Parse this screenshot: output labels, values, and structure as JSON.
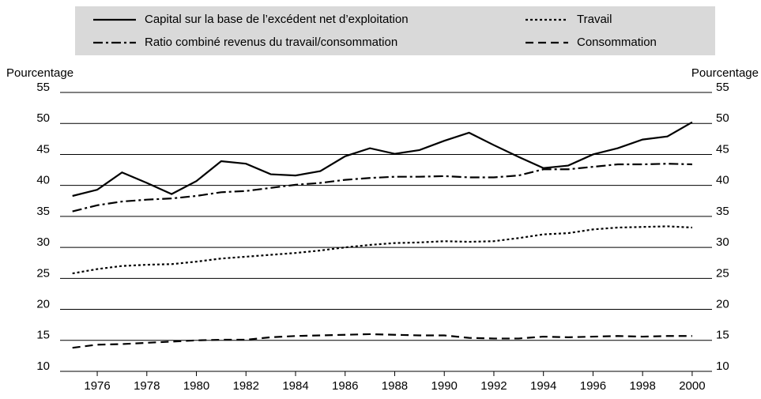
{
  "chart_data": {
    "type": "line",
    "ylabel": "Pourcentage",
    "x": [
      1975,
      1976,
      1977,
      1978,
      1979,
      1980,
      1981,
      1982,
      1983,
      1984,
      1985,
      1986,
      1987,
      1988,
      1989,
      1990,
      1991,
      1992,
      1993,
      1994,
      1995,
      1996,
      1997,
      1998,
      1999,
      2000
    ],
    "series": [
      {
        "name": "Capital sur la base de l’excédent net d’exploitation",
        "color": "#000000",
        "style": "solid",
        "values": [
          38.3,
          39.3,
          42.1,
          40.4,
          38.6,
          40.7,
          43.9,
          43.5,
          41.8,
          41.6,
          42.3,
          44.7,
          46.0,
          45.1,
          45.7,
          47.2,
          48.5,
          46.5,
          44.6,
          42.8,
          43.2,
          45.0,
          46.0,
          47.4,
          47.9,
          50.2
        ]
      },
      {
        "name": "Travail",
        "color": "#000000",
        "style": "dotted",
        "values": [
          25.8,
          26.5,
          27.0,
          27.2,
          27.3,
          27.7,
          28.2,
          28.5,
          28.8,
          29.1,
          29.5,
          30.0,
          30.4,
          30.7,
          30.8,
          31.0,
          30.9,
          31.0,
          31.5,
          32.1,
          32.3,
          32.9,
          33.2,
          33.3,
          33.4,
          33.2
        ]
      },
      {
        "name": "Ratio combiné revenus du travail/consommation",
        "color": "#000000",
        "style": "dashdot",
        "values": [
          35.8,
          36.8,
          37.4,
          37.7,
          37.9,
          38.3,
          38.9,
          39.1,
          39.6,
          40.1,
          40.4,
          40.9,
          41.2,
          41.4,
          41.4,
          41.5,
          41.3,
          41.3,
          41.6,
          42.6,
          42.6,
          43.0,
          43.4,
          43.4,
          43.5,
          43.4
        ]
      },
      {
        "name": "Consommation",
        "color": "#000000",
        "style": "dashed",
        "values": [
          13.8,
          14.3,
          14.4,
          14.6,
          14.8,
          15.0,
          15.1,
          15.1,
          15.5,
          15.7,
          15.8,
          15.9,
          16.0,
          15.9,
          15.8,
          15.8,
          15.4,
          15.3,
          15.3,
          15.6,
          15.5,
          15.6,
          15.7,
          15.6,
          15.7,
          15.7
        ]
      }
    ],
    "xlim": [
      1974.5,
      2000.8
    ],
    "xticks": [
      1976,
      1978,
      1980,
      1982,
      1984,
      1986,
      1988,
      1990,
      1992,
      1994,
      1996,
      1998,
      2000
    ],
    "ylim": [
      10,
      55
    ],
    "yticks": [
      10,
      15,
      20,
      25,
      30,
      35,
      40,
      45,
      50,
      55
    ],
    "grid": true,
    "legend": "top"
  }
}
